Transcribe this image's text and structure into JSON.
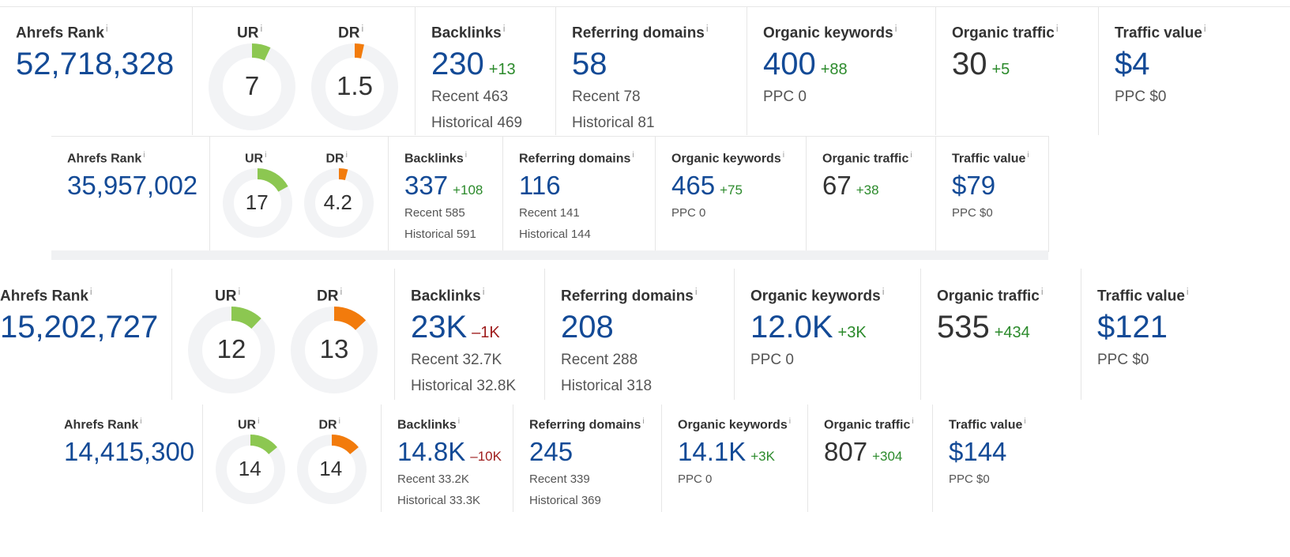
{
  "labels": {
    "ahrefs_rank": "Ahrefs Rank",
    "ur": "UR",
    "dr": "DR",
    "backlinks": "Backlinks",
    "referring_domains": "Referring domains",
    "organic_keywords": "Organic keywords",
    "organic_traffic": "Organic traffic",
    "traffic_value": "Traffic value",
    "info": "i"
  },
  "colors": {
    "ur": "#8cc751",
    "dr": "#f27b0c",
    "ring": "#f2f3f5",
    "blue": "#134a96",
    "positive": "#2b8a2b",
    "negative": "#9e1b1b"
  },
  "panels": [
    {
      "ahrefs_rank": "52,718,328",
      "ur": {
        "value": "7",
        "fraction": 0.07
      },
      "dr": {
        "value": "1.5",
        "fraction": 0.015
      },
      "backlinks": {
        "value": "230",
        "delta": "+13",
        "recent": "Recent 463",
        "historical": "Historical 469"
      },
      "referring_domains": {
        "value": "58",
        "recent": "Recent 78",
        "historical": "Historical 81"
      },
      "organic_keywords": {
        "value": "400",
        "delta": "+88",
        "ppc": "PPC 0"
      },
      "organic_traffic": {
        "value": "30",
        "delta": "+5"
      },
      "traffic_value": {
        "value": "$4",
        "ppc": "PPC $0"
      }
    },
    {
      "ahrefs_rank": "35,957,002",
      "ur": {
        "value": "17",
        "fraction": 0.17
      },
      "dr": {
        "value": "4.2",
        "fraction": 0.042
      },
      "backlinks": {
        "value": "337",
        "delta": "+108",
        "recent": "Recent 585",
        "historical": "Historical 591"
      },
      "referring_domains": {
        "value": "116",
        "recent": "Recent 141",
        "historical": "Historical 144"
      },
      "organic_keywords": {
        "value": "465",
        "delta": "+75",
        "ppc": "PPC 0"
      },
      "organic_traffic": {
        "value": "67",
        "delta": "+38"
      },
      "traffic_value": {
        "value": "$79",
        "ppc": "PPC $0"
      }
    },
    {
      "ahrefs_rank": "15,202,727",
      "ur": {
        "value": "12",
        "fraction": 0.12
      },
      "dr": {
        "value": "13",
        "fraction": 0.13
      },
      "backlinks": {
        "value": "23K",
        "delta": "–1K",
        "recent": "Recent 32.7K",
        "historical": "Historical 32.8K"
      },
      "referring_domains": {
        "value": "208",
        "recent": "Recent 288",
        "historical": "Historical 318"
      },
      "organic_keywords": {
        "value": "12.0K",
        "delta": "+3K",
        "ppc": "PPC 0"
      },
      "organic_traffic": {
        "value": "535",
        "delta": "+434"
      },
      "traffic_value": {
        "value": "$121",
        "ppc": "PPC $0"
      }
    },
    {
      "ahrefs_rank": "14,415,300",
      "ur": {
        "value": "14",
        "fraction": 0.14
      },
      "dr": {
        "value": "14",
        "fraction": 0.14
      },
      "backlinks": {
        "value": "14.8K",
        "delta": "–10K",
        "recent": "Recent 33.2K",
        "historical": "Historical 33.3K"
      },
      "referring_domains": {
        "value": "245",
        "recent": "Recent 339",
        "historical": "Historical 369"
      },
      "organic_keywords": {
        "value": "14.1K",
        "delta": "+3K",
        "ppc": "PPC 0"
      },
      "organic_traffic": {
        "value": "807",
        "delta": "+304"
      },
      "traffic_value": {
        "value": "$144",
        "ppc": "PPC $0"
      }
    }
  ]
}
